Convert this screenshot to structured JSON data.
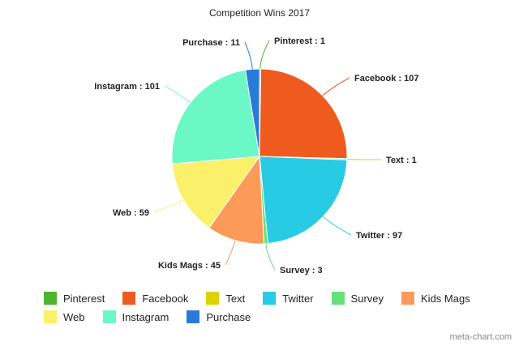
{
  "chart_data": {
    "type": "pie",
    "title": "Competition Wins 2017",
    "slices": [
      {
        "name": "Pinterest",
        "value": 1,
        "label": "Pinterest : 1",
        "color": "#4cb52f"
      },
      {
        "name": "Facebook",
        "value": 107,
        "label": "Facebook : 107",
        "color": "#ef5a1f"
      },
      {
        "name": "Text",
        "value": 1,
        "label": "Text : 1",
        "color": "#d9d400"
      },
      {
        "name": "Twitter",
        "value": 97,
        "label": "Twitter : 97",
        "color": "#27cbe3"
      },
      {
        "name": "Survey",
        "value": 3,
        "label": "Survey : 3",
        "color": "#66e07a"
      },
      {
        "name": "Kids Mags",
        "value": 45,
        "label": "Kids Mags : 45",
        "color": "#fc9a5a"
      },
      {
        "name": "Web",
        "value": 59,
        "label": "Web : 59",
        "color": "#fbf06a"
      },
      {
        "name": "Instagram",
        "value": 101,
        "label": "Instagram : 101",
        "color": "#6cf7c6"
      },
      {
        "name": "Purchase",
        "value": 11,
        "label": "Purchase : 11",
        "color": "#2a7bd6"
      }
    ],
    "legend_placement": "bottom"
  },
  "watermark": "meta-chart.com"
}
